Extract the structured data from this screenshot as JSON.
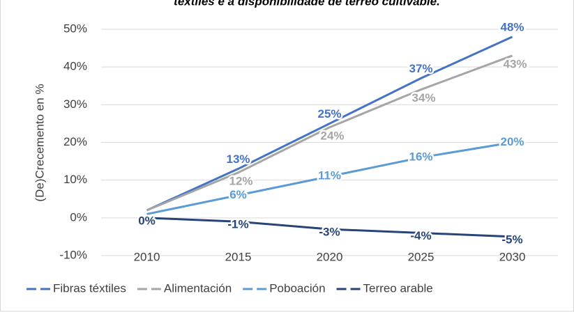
{
  "chart_data": {
    "type": "line",
    "title": "téxtiles e a dispoñibilidade de terreo cultivable.",
    "y_label": "(De)Crecemento en %",
    "categories": [
      "2010",
      "2015",
      "2020",
      "2025",
      "2030"
    ],
    "series": [
      {
        "name": "Fibras téxtiles",
        "color": "#4472c4",
        "values": [
          2,
          13,
          25,
          37,
          48
        ],
        "value_labels": [
          null,
          "13%",
          "25%",
          "37%",
          "48%"
        ]
      },
      {
        "name": "Alimentación",
        "color": "#a5a5a5",
        "values": [
          2,
          12,
          24,
          34,
          43
        ],
        "value_labels": [
          null,
          "12%",
          "24%",
          "34%",
          "43%"
        ]
      },
      {
        "name": "Poboación",
        "color": "#5b9bd5",
        "values": [
          1,
          6,
          11,
          16,
          20
        ],
        "value_labels": [
          null,
          "6%",
          "11%",
          "16%",
          "20%"
        ]
      },
      {
        "name": "Terreo arable",
        "color": "#264478",
        "values": [
          0,
          -1,
          -3,
          -4,
          -5
        ],
        "value_labels": [
          "0%",
          "-1%",
          "-3%",
          "-4%",
          "-5%"
        ]
      }
    ],
    "ylim": [
      -10,
      50
    ],
    "yticks": [
      {
        "value": -10,
        "label": "-10%"
      },
      {
        "value": 0,
        "label": "0%"
      },
      {
        "value": 10,
        "label": "10%"
      },
      {
        "value": 20,
        "label": "20%"
      },
      {
        "value": 30,
        "label": "30%"
      },
      {
        "value": 40,
        "label": "40%"
      },
      {
        "value": 50,
        "label": "50%"
      }
    ],
    "grid": true,
    "legend": "bottom"
  }
}
